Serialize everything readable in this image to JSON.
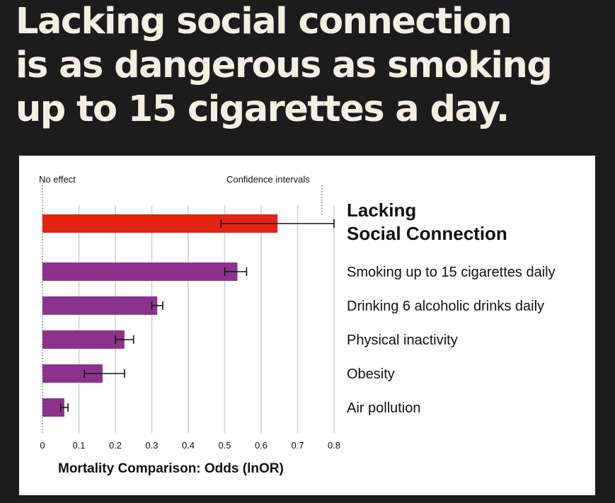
{
  "headline": {
    "line1": "Lacking social connection",
    "line2": "is as dangerous as smoking",
    "line3": "up to 15 cigarettes a day."
  },
  "chart_data": {
    "type": "bar",
    "orientation": "horizontal",
    "xlabel": "Mortality Comparison: Odds (lnOR)",
    "xlim": [
      0,
      0.8
    ],
    "xticks": [
      "0",
      "0.1",
      "0.2",
      "0.3",
      "0.4",
      "0.5",
      "0.6",
      "0.7",
      "0.8"
    ],
    "grid": true,
    "annotations": {
      "no_effect": "No effect",
      "confidence_intervals": "Confidence intervals"
    },
    "categories": [
      "Lacking Social Connection",
      "Smoking up to 15 cigarettes daily",
      "Drinking 6 alcoholic drinks daily",
      "Physical inactivity",
      "Obesity",
      "Air pollution"
    ],
    "highlight_label_lines": [
      "Lacking",
      "Social Connection"
    ],
    "values": [
      0.645,
      0.535,
      0.315,
      0.225,
      0.165,
      0.06
    ],
    "ci_low": [
      0.49,
      0.5,
      0.3,
      0.2,
      0.115,
      0.05
    ],
    "ci_high": [
      0.8,
      0.56,
      0.33,
      0.25,
      0.225,
      0.07
    ],
    "colors": {
      "highlight": "#e32412",
      "bars": "#8b338c",
      "grid": "#cfcfcf"
    }
  }
}
